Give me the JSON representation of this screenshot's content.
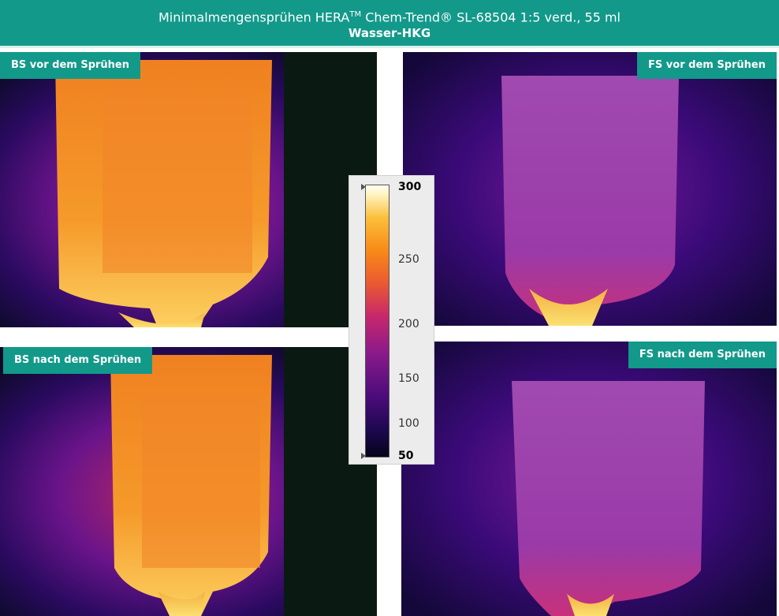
{
  "header": {
    "title_prefix": "Minimalmengensprühen HERA",
    "trademark": "TM",
    "title_suffix": " Chem-Trend® SL-68504 1:5 verd., 55 ml",
    "subtitle": "Wasser-HKG"
  },
  "panels": [
    {
      "label": "BS vor dem Sprühen"
    },
    {
      "label": "FS vor dem Sprühen"
    },
    {
      "label": "BS nach dem Sprühen"
    },
    {
      "label": "FS nach dem Sprühen"
    }
  ],
  "colorbar": {
    "max": 300,
    "ticks": [
      250,
      200,
      150,
      100
    ],
    "min": 50
  }
}
